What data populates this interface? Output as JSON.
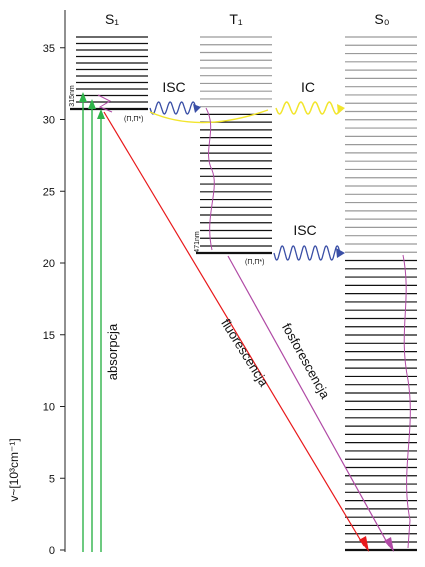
{
  "axis": {
    "label": "v~[10³cm⁻¹]",
    "ticks": [
      "0",
      "5",
      "10",
      "15",
      "20",
      "25",
      "30",
      "35"
    ]
  },
  "states": {
    "s1": "S₁",
    "t1": "T₁",
    "s0": "S₀"
  },
  "transitions": {
    "isc_top": "ISC",
    "ic": "IC",
    "isc_bottom": "ISC",
    "absorption": "absorpcja",
    "fluorescence": "fluorescencja",
    "phosphorescence": "fosforescencja"
  },
  "annotations": {
    "s1_wavelength": "315nm",
    "t1_wavelength": "471nm",
    "s1_origin": "(Π,Π*)",
    "t1_origin": "(Π,Π*)"
  },
  "colors": {
    "level_dark": "#111111",
    "level_grey": "#9a9a9a",
    "isc": "#3a4fa6",
    "ic": "#f2e52c",
    "absorption": "#2fb34a",
    "fluorescence": "#e8191b",
    "phosphorescence": "#b04aa5"
  }
}
